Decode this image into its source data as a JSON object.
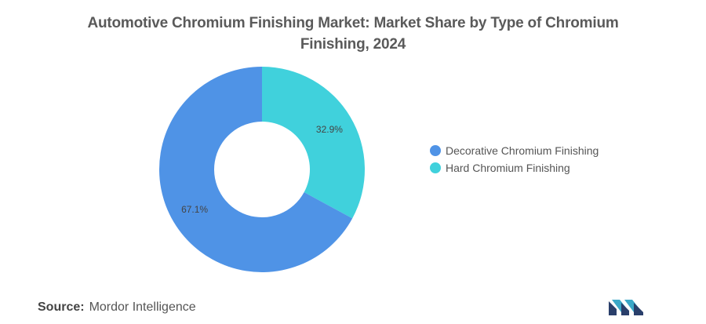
{
  "title_line1": "Automotive Chromium Finishing Market: Market Share by Type of Chromium",
  "title_line2": "Finishing, 2024",
  "chart_data": {
    "type": "pie",
    "donut": true,
    "title": "Automotive Chromium Finishing Market: Market Share by Type of Chromium Finishing, 2024",
    "categories": [
      "Decorative Chromium Finishing",
      "Hard Chromium Finishing"
    ],
    "values": [
      67.1,
      32.9
    ],
    "labels": [
      "67.1%",
      "32.9%"
    ],
    "colors": [
      "#4f93e6",
      "#40d1dc"
    ],
    "legend_position": "right"
  },
  "legend": {
    "items": [
      {
        "label": "Decorative Chromium Finishing",
        "color": "#4f93e6"
      },
      {
        "label": "Hard Chromium Finishing",
        "color": "#40d1dc"
      }
    ]
  },
  "footer": {
    "source_label": "Source:",
    "source_value": "Mordor Intelligence"
  }
}
